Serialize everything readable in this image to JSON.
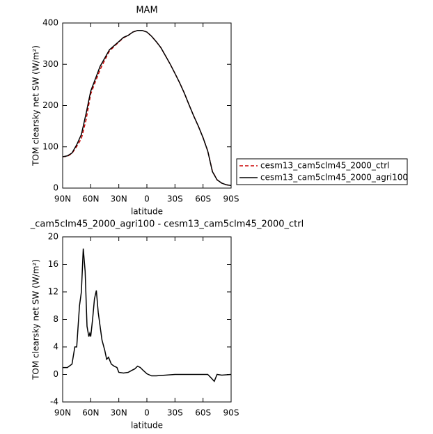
{
  "chart_data": [
    {
      "type": "line",
      "title": "MAM",
      "xlabel": "latitude",
      "ylabel": "TOM clearsky net SW (W/m²)",
      "x": [
        90,
        85,
        80,
        75,
        70,
        65,
        60,
        55,
        50,
        45,
        40,
        35,
        30,
        25,
        20,
        15,
        10,
        5,
        0,
        -5,
        -10,
        -15,
        -20,
        -25,
        -30,
        -35,
        -40,
        -45,
        -50,
        -55,
        -60,
        -65,
        -70,
        -75,
        -80,
        -85,
        -90
      ],
      "series": [
        {
          "name": "cesm13_cam5clm45_2000_ctrl",
          "color": "#cc0000",
          "linestyle": "dashed",
          "values": [
            76,
            77,
            84,
            101,
            120,
            165,
            228,
            258,
            287,
            310,
            332,
            343,
            354,
            364,
            370,
            378,
            382,
            382,
            378,
            368,
            355,
            340,
            320,
            300,
            278,
            255,
            230,
            202,
            175,
            150,
            122,
            90,
            41,
            20,
            12,
            8,
            6
          ]
        },
        {
          "name": "cesm13_cam5clm45_2000_agri100",
          "color": "#000000",
          "linestyle": "solid",
          "values": [
            76,
            78,
            85,
            105,
            130,
            180,
            235,
            265,
            295,
            315,
            335,
            345,
            355,
            365,
            370,
            378,
            382,
            382,
            378,
            368,
            355,
            340,
            320,
            300,
            278,
            255,
            230,
            202,
            175,
            150,
            122,
            90,
            40,
            20,
            12,
            8,
            6
          ]
        }
      ],
      "xlim": [
        90,
        -90
      ],
      "xticks": [
        {
          "value": 90,
          "label": "90N"
        },
        {
          "value": 60,
          "label": "60N"
        },
        {
          "value": 30,
          "label": "30N"
        },
        0,
        {
          "value": -30,
          "label": "30S"
        },
        {
          "value": -60,
          "label": "60S"
        },
        {
          "value": -90,
          "label": "90S"
        }
      ],
      "ylim": [
        0,
        400
      ],
      "yticks": [
        0,
        100,
        200,
        300,
        400
      ],
      "legend": "right"
    },
    {
      "type": "line",
      "title": "_cam5clm45_2000_agri100 - cesm13_cam5clm45_2000_ctrl",
      "xlabel": "latitude",
      "ylabel": "TOM clearsky net SW (W/m²)",
      "x": [
        90,
        85,
        80,
        77,
        75,
        72,
        70,
        68,
        66,
        64,
        62,
        61,
        60,
        58,
        56,
        54,
        52,
        50,
        48,
        45,
        43,
        41,
        38,
        35,
        32,
        30,
        25,
        20,
        16,
        13,
        10,
        7,
        4,
        0,
        -5,
        -10,
        -20,
        -30,
        -40,
        -50,
        -60,
        -65,
        -68,
        -72,
        -75,
        -80,
        -90
      ],
      "series": [
        {
          "color": "#000000",
          "linestyle": "solid",
          "values": [
            1,
            1,
            1.5,
            4,
            4,
            10,
            12,
            18.3,
            15,
            7,
            5.5,
            6,
            5.5,
            8,
            11,
            12.2,
            9,
            7,
            5,
            3.5,
            2.2,
            2.5,
            1.5,
            1.2,
            1,
            0.3,
            0.2,
            0.3,
            0.6,
            0.8,
            1.2,
            1,
            0.6,
            0.1,
            -0.2,
            -0.2,
            -0.1,
            0,
            0,
            0,
            0,
            0,
            -0.4,
            -1,
            0,
            -0.1,
            0
          ]
        }
      ],
      "xlim": [
        90,
        -90
      ],
      "xticks": [
        {
          "value": 90,
          "label": "90N"
        },
        {
          "value": 60,
          "label": "60N"
        },
        {
          "value": 30,
          "label": "30N"
        },
        0,
        {
          "value": -30,
          "label": "30S"
        },
        {
          "value": -60,
          "label": "60S"
        },
        {
          "value": -90,
          "label": "90S"
        }
      ],
      "ylim": [
        -4,
        20
      ],
      "yticks": [
        -4,
        0,
        4,
        8,
        12,
        16,
        20
      ]
    }
  ]
}
